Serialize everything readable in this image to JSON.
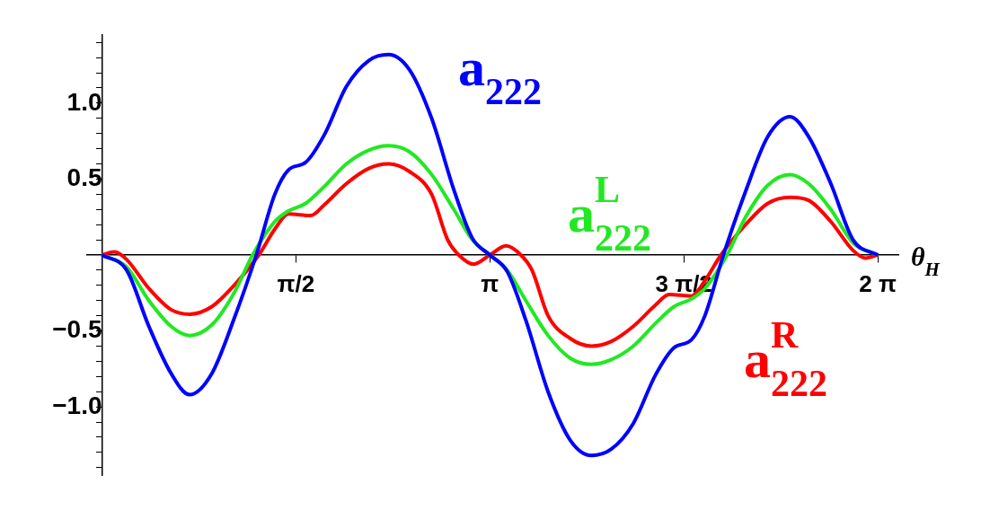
{
  "chart_data": {
    "type": "line",
    "xlabel": "θ$_{H}$",
    "xlim": [
      -0.12,
      6.45
    ],
    "ylim": [
      -1.45,
      1.45
    ],
    "xticks": [
      {
        "value": 1.5708,
        "label": "π/2"
      },
      {
        "value": 3.14159,
        "label": "π"
      },
      {
        "value": 4.71239,
        "label": "3 π/2"
      },
      {
        "value": 6.28319,
        "label": "2 π"
      }
    ],
    "yticks": [
      {
        "value": -1.4,
        "label": null
      },
      {
        "value": -1.3,
        "label": null
      },
      {
        "value": -1.2,
        "label": null
      },
      {
        "value": -1.1,
        "label": null
      },
      {
        "value": -1.0,
        "label": "−1.0"
      },
      {
        "value": -0.9,
        "label": null
      },
      {
        "value": -0.8,
        "label": null
      },
      {
        "value": -0.7,
        "label": null
      },
      {
        "value": -0.6,
        "label": null
      },
      {
        "value": -0.5,
        "label": "−0.5"
      },
      {
        "value": -0.4,
        "label": null
      },
      {
        "value": -0.3,
        "label": null
      },
      {
        "value": -0.2,
        "label": null
      },
      {
        "value": -0.1,
        "label": null
      },
      {
        "value": 0.1,
        "label": null
      },
      {
        "value": 0.2,
        "label": null
      },
      {
        "value": 0.3,
        "label": null
      },
      {
        "value": 0.4,
        "label": null
      },
      {
        "value": 0.5,
        "label": "0.5"
      },
      {
        "value": 0.6,
        "label": null
      },
      {
        "value": 0.7,
        "label": null
      },
      {
        "value": 0.8,
        "label": null
      },
      {
        "value": 0.9,
        "label": null
      },
      {
        "value": 1.0,
        "label": "1.0"
      },
      {
        "value": 1.1,
        "label": null
      },
      {
        "value": 1.2,
        "label": null
      },
      {
        "value": 1.3,
        "label": null
      },
      {
        "value": 1.4,
        "label": null
      }
    ],
    "grid": false,
    "legend": false,
    "marker": "none",
    "line_style": "solid",
    "series": [
      {
        "name": "a$_{222}$",
        "color": "#0000ff",
        "x": [
          0,
          0.2,
          0.38,
          0.56,
          0.71,
          0.89,
          1.07,
          1.25,
          1.4,
          1.51,
          1.65,
          1.8,
          1.98,
          2.16,
          2.32,
          2.49,
          2.67,
          2.85,
          3.0,
          3.1416,
          3.283,
          3.433,
          3.613,
          3.793,
          3.963,
          4.123,
          4.303,
          4.483,
          4.633,
          4.773,
          4.883,
          5.033,
          5.213,
          5.393,
          5.573,
          5.723,
          5.903,
          6.083,
          6.2832
        ],
        "values": [
          0,
          -0.1,
          -0.47,
          -0.78,
          -0.92,
          -0.78,
          -0.42,
          0,
          0.4,
          0.56,
          0.61,
          0.79,
          1.11,
          1.28,
          1.32,
          1.22,
          0.9,
          0.43,
          0.11,
          0,
          -0.11,
          -0.43,
          -0.9,
          -1.22,
          -1.32,
          -1.28,
          -1.11,
          -0.79,
          -0.61,
          -0.56,
          -0.4,
          0,
          0.42,
          0.78,
          0.91,
          0.78,
          0.47,
          0.1,
          0
        ]
      },
      {
        "name": "a$^{L}$$_{222}$",
        "color": "#22e822",
        "x": [
          0,
          0.2,
          0.38,
          0.56,
          0.71,
          0.89,
          1.07,
          1.22,
          1.4,
          1.51,
          1.65,
          1.8,
          1.98,
          2.16,
          2.32,
          2.49,
          2.67,
          2.85,
          3.0,
          3.1416,
          3.283,
          3.433,
          3.613,
          3.793,
          3.963,
          4.123,
          4.303,
          4.483,
          4.633,
          4.773,
          4.883,
          5.063,
          5.213,
          5.393,
          5.573,
          5.723,
          5.903,
          6.083,
          6.2832
        ],
        "values": [
          0,
          -0.08,
          -0.3,
          -0.47,
          -0.53,
          -0.46,
          -0.25,
          0,
          0.22,
          0.29,
          0.34,
          0.45,
          0.6,
          0.69,
          0.72,
          0.68,
          0.53,
          0.3,
          0.1,
          0,
          -0.1,
          -0.3,
          -0.53,
          -0.68,
          -0.72,
          -0.69,
          -0.6,
          -0.45,
          -0.34,
          -0.29,
          -0.22,
          0,
          0.25,
          0.46,
          0.53,
          0.47,
          0.3,
          0.08,
          0
        ]
      },
      {
        "name": "a$^{R}$$_{222}$",
        "color": "#ff0000",
        "x": [
          0,
          0.1,
          0.2,
          0.38,
          0.56,
          0.71,
          0.89,
          1.07,
          1.27,
          1.4,
          1.51,
          1.69,
          1.8,
          1.98,
          2.16,
          2.32,
          2.49,
          2.67,
          2.8,
          2.89,
          3.01,
          3.1416,
          3.273,
          3.393,
          3.483,
          3.613,
          3.793,
          3.963,
          4.123,
          4.303,
          4.483,
          4.593,
          4.773,
          4.883,
          5.013,
          5.213,
          5.393,
          5.573,
          5.723,
          5.903,
          6.083,
          6.183,
          6.2832
        ],
        "values": [
          0,
          0.02,
          -0.03,
          -0.22,
          -0.36,
          -0.39,
          -0.34,
          -0.2,
          0,
          0.17,
          0.27,
          0.26,
          0.33,
          0.47,
          0.57,
          0.6,
          0.55,
          0.4,
          0.1,
          0,
          -0.06,
          0,
          0.06,
          0,
          -0.1,
          -0.4,
          -0.55,
          -0.6,
          -0.57,
          -0.47,
          -0.33,
          -0.26,
          -0.27,
          -0.17,
          0,
          0.2,
          0.34,
          0.38,
          0.36,
          0.22,
          0.03,
          -0.02,
          0
        ]
      }
    ]
  }
}
